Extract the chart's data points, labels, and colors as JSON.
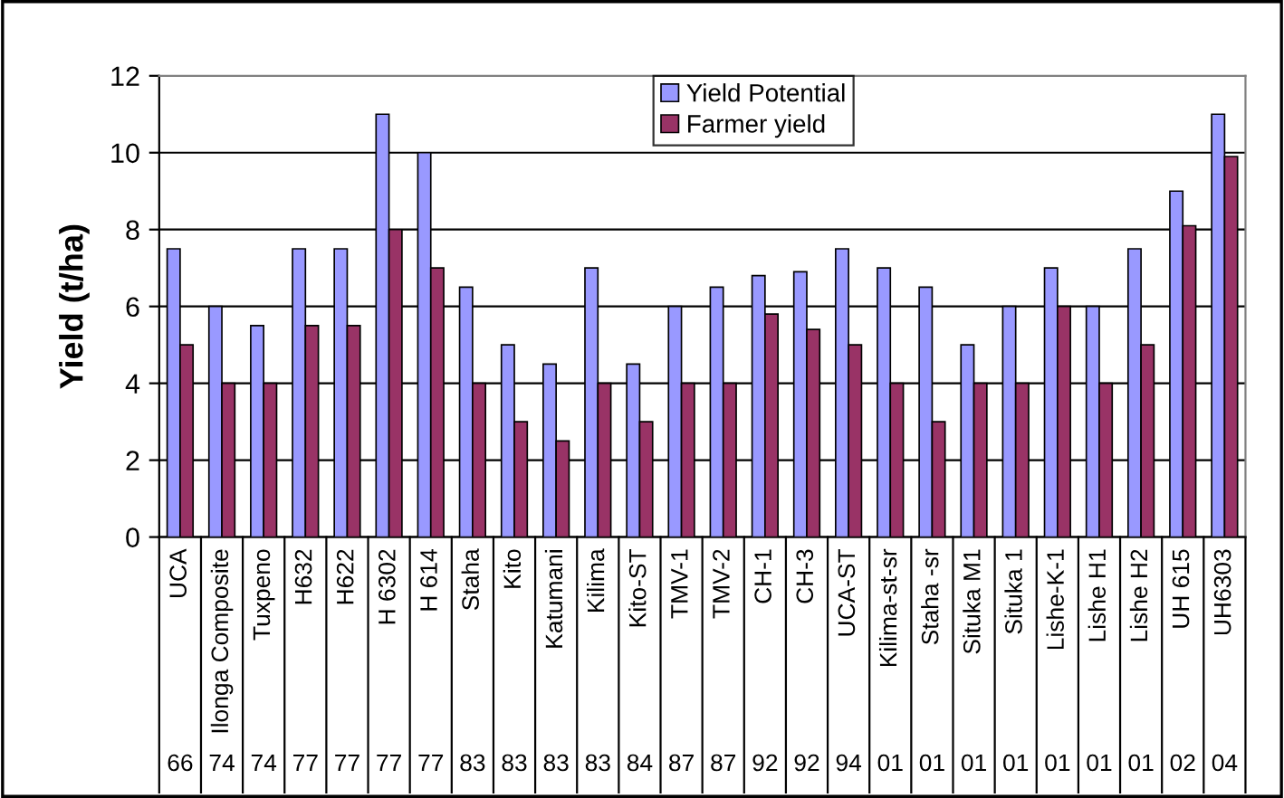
{
  "chart_data": {
    "type": "bar",
    "ylabel": "Yield (t/ha)",
    "categories": [
      "UCA",
      "Ilonga Composite",
      "Tuxpeno",
      "H632",
      "H622",
      "H 6302",
      "H 614",
      "Staha",
      "Kito",
      "Katumani",
      "Kilima",
      "Kito-ST",
      "TMV-1",
      "TMV-2",
      "CH-1",
      "CH-3",
      "UCA-ST",
      "Kilima-st-sr",
      "Staha -sr",
      "Situka M1",
      "Situka 1",
      "Lishe-K-1",
      "Lishe H1",
      "Lishe H2",
      "UH 615",
      "UH6303"
    ],
    "series": [
      {
        "name": "Yield Potential",
        "color": "#9999ff",
        "values": [
          7.5,
          6,
          5.5,
          7.5,
          7.5,
          11,
          10,
          6.5,
          5,
          4.5,
          7,
          4.5,
          6,
          6.5,
          6.8,
          6.9,
          7.5,
          7,
          6.5,
          5,
          6,
          7,
          6,
          7.5,
          9,
          11
        ]
      },
      {
        "name": "Farmer yield",
        "color": "#993366",
        "values": [
          5,
          4,
          4,
          5.5,
          5.5,
          8,
          7,
          4,
          3,
          2.5,
          4,
          3,
          4,
          4,
          5.8,
          5.4,
          5,
          4,
          3,
          4,
          4,
          6,
          4,
          5,
          8.1,
          9.9
        ]
      }
    ],
    "ylim": [
      0,
      12
    ],
    "yticks": [
      0,
      2,
      4,
      6,
      8,
      10,
      12
    ],
    "grid": "y",
    "legend": "top",
    "annotations": [
      "66",
      "74",
      "74",
      "77",
      "77",
      "77",
      "77",
      "83",
      "83",
      "83",
      "83",
      "84",
      "87",
      "87",
      "92",
      "92",
      "94",
      "01",
      "01",
      "01",
      "01",
      "01",
      "01",
      "01",
      "02",
      "04"
    ]
  }
}
